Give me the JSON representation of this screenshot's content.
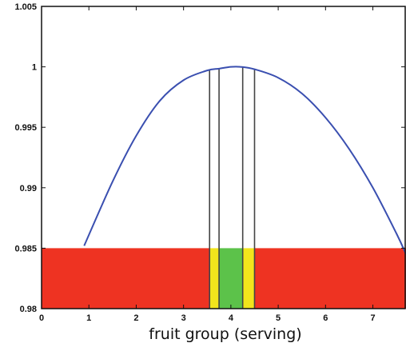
{
  "chart_data": {
    "type": "line",
    "title": "",
    "xlabel": "fruit group (serving)",
    "ylabel": "",
    "xlim": [
      0,
      7.7
    ],
    "ylim": [
      0.98,
      1.005
    ],
    "x_ticks": [
      "0",
      "1",
      "2",
      "3",
      "4",
      "5",
      "6",
      "7"
    ],
    "y_ticks": [
      "0.98",
      "0.985",
      "0.99",
      "0.995",
      "1"
    ],
    "top_tick_partial": "1.005",
    "grid": false,
    "series": [
      {
        "x": [
          0.9,
          1.5,
          2.0,
          2.5,
          3.0,
          3.5,
          3.75,
          4.0,
          4.2,
          4.5,
          5.0,
          5.5,
          6.0,
          6.5,
          7.0,
          7.5,
          7.7
        ],
        "y": [
          0.9852,
          0.9905,
          0.9943,
          0.9972,
          0.9989,
          0.9997,
          0.99985,
          1.0,
          1.0,
          0.9998,
          0.9991,
          0.9978,
          0.9958,
          0.9932,
          0.99,
          0.9862,
          0.9845
        ]
      }
    ],
    "vertical_lines_x": [
      3.55,
      3.75,
      4.25,
      4.5
    ],
    "bands": [
      {
        "x_range": [
          0,
          3.55
        ],
        "y_range": [
          0.98,
          0.985
        ],
        "color": "#ee3322"
      },
      {
        "x_range": [
          3.55,
          3.75
        ],
        "y_range": [
          0.98,
          0.985
        ],
        "color": "#f2e51c"
      },
      {
        "x_range": [
          3.75,
          4.25
        ],
        "y_range": [
          0.98,
          0.985
        ],
        "color": "#5cc24a"
      },
      {
        "x_range": [
          4.25,
          4.5
        ],
        "y_range": [
          0.98,
          0.985
        ],
        "color": "#f2e51c"
      },
      {
        "x_range": [
          4.5,
          7.7
        ],
        "y_range": [
          0.98,
          0.985
        ],
        "color": "#ee3322"
      }
    ],
    "colors": {
      "curve": "#3a4fb0",
      "axis": "#111111",
      "vline": "#444444"
    }
  }
}
